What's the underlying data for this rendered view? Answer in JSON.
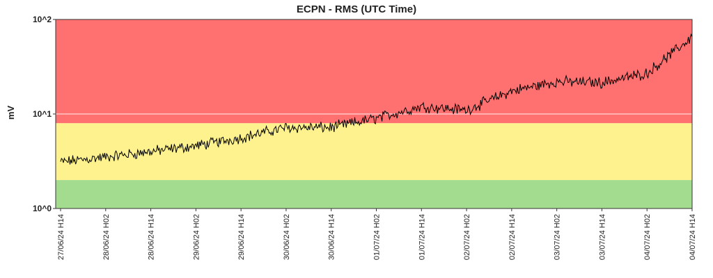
{
  "chart_data": {
    "type": "line",
    "title": "ECPN - RMS (UTC Time)",
    "ylabel": "mV",
    "xlabel": "",
    "yscale": "log",
    "ylim": [
      1,
      100
    ],
    "yticks": [
      "10^0",
      "10^1",
      "10^2"
    ],
    "x_tick_labels": [
      "27/06/24 H14",
      "28/06/24 H02",
      "28/06/24 H14",
      "29/06/24 H02",
      "29/06/24 H14",
      "30/06/24 H02",
      "30/06/24 H14",
      "01/07/24 H02",
      "01/07/24 H14",
      "02/07/24 H02",
      "02/07/24 H14",
      "03/07/24 H02",
      "03/07/24 H14",
      "04/07/24 H02",
      "04/07/24 H14"
    ],
    "bands": [
      {
        "from": 1,
        "to": 2,
        "color": "#a3dc8f"
      },
      {
        "from": 2,
        "to": 8,
        "color": "#fdf28e"
      },
      {
        "from": 8,
        "to": 100,
        "color": "#ff7070"
      }
    ],
    "grid": "horizontal",
    "series": [
      {
        "color": "#000000",
        "x": [
          "27/06/24 H14",
          "28/06/24 H02",
          "28/06/24 H14",
          "29/06/24 H02",
          "29/06/24 H14",
          "30/06/24 H02",
          "30/06/24 H14",
          "01/07/24 H02",
          "01/07/24 H14",
          "02/07/24 H02",
          "02/07/24 H14",
          "03/07/24 H02",
          "03/07/24 H14",
          "04/07/24 H02",
          "04/07/24 H14"
        ],
        "values": [
          3.1,
          3.5,
          4.0,
          4.6,
          5.6,
          7.2,
          7.2,
          9.0,
          12.0,
          11.0,
          17.5,
          22.0,
          21.5,
          27.0,
          65.0
        ]
      }
    ]
  }
}
